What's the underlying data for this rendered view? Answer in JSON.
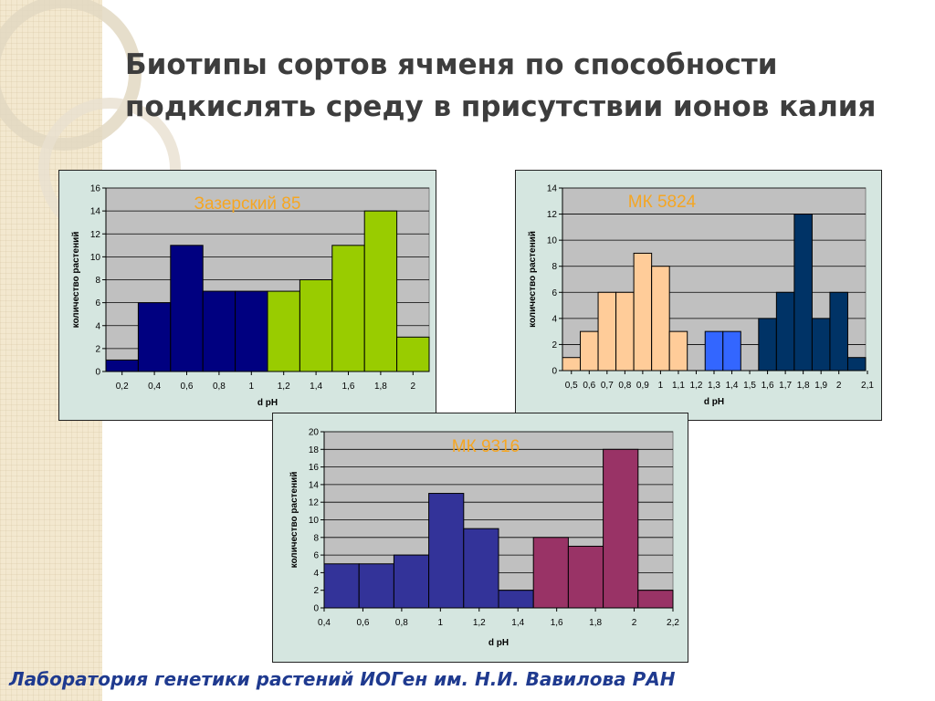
{
  "slide": {
    "title_line1": "Биотипы сортов ячменя по способности",
    "title_line2": "подкислять среду в присутствии ионов калия",
    "footer": "Лаборатория генетики растений ИОГен им. Н.И. Вавилова РАН"
  },
  "chart_data": [
    {
      "type": "bar",
      "title": "Зазерский 85",
      "xlabel": "d pH",
      "ylabel": "количество растений",
      "ylim": [
        0,
        16
      ],
      "yticks": [
        0,
        2,
        4,
        6,
        8,
        10,
        12,
        14,
        16
      ],
      "xtick_labels": [
        "0,2",
        "0,4",
        "0,6",
        "0,8",
        "1",
        "1,2",
        "1,4",
        "1,6",
        "1,8",
        "2"
      ],
      "grid": true,
      "values": [
        1,
        6,
        11,
        7,
        7,
        7,
        8,
        11,
        14,
        3
      ],
      "colors": [
        "#000080",
        "#000080",
        "#000080",
        "#000080",
        "#000080",
        "#99cc00",
        "#99cc00",
        "#99cc00",
        "#99cc00",
        "#99cc00"
      ]
    },
    {
      "type": "bar",
      "title": "МК 5824",
      "xlabel": "d pH",
      "ylabel": "количество растений",
      "ylim": [
        0,
        14
      ],
      "yticks": [
        0,
        2,
        4,
        6,
        8,
        10,
        12,
        14
      ],
      "xtick_labels": [
        "0,5",
        "0,6",
        "0,7",
        "0,8",
        "0,9",
        "1",
        "1,1",
        "1,2",
        "1,3",
        "1,4",
        "1,5",
        "1,6",
        "1,7",
        "1,8",
        "1,9",
        "2",
        "2,1"
      ],
      "grid": true,
      "values": [
        1,
        3,
        6,
        6,
        9,
        8,
        3,
        0,
        3,
        3,
        0,
        4,
        6,
        12,
        4,
        6,
        1
      ],
      "colors": [
        "#ffcc99",
        "#ffcc99",
        "#ffcc99",
        "#ffcc99",
        "#ffcc99",
        "#ffcc99",
        "#ffcc99",
        "#ffcc99",
        "#3366ff",
        "#3366ff",
        "#003366",
        "#003366",
        "#003366",
        "#003366",
        "#003366",
        "#003366",
        "#003366"
      ]
    },
    {
      "type": "bar",
      "title": "МК 9316",
      "xlabel": "d pH",
      "ylabel": "количество растений",
      "ylim": [
        0,
        20
      ],
      "yticks": [
        0,
        2,
        4,
        6,
        8,
        10,
        12,
        14,
        16,
        18,
        20
      ],
      "xtick_labels": [
        "0,4",
        "0,6",
        "0,8",
        "1",
        "1,2",
        "1,4",
        "1,6",
        "1,8",
        "2",
        "2,2"
      ],
      "grid": true,
      "values": [
        5,
        5,
        6,
        13,
        9,
        2,
        8,
        7,
        18,
        2
      ],
      "colors": [
        "#333399",
        "#333399",
        "#333399",
        "#333399",
        "#333399",
        "#333399",
        "#993366",
        "#993366",
        "#993366",
        "#993366"
      ]
    }
  ]
}
